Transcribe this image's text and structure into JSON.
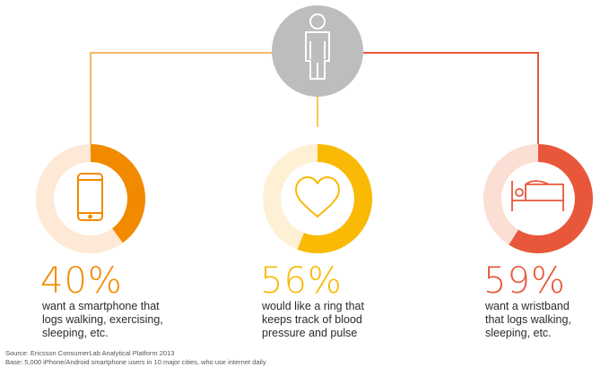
{
  "chart_data": {
    "type": "pie",
    "items": [
      {
        "value": 40,
        "label": "40%",
        "description": [
          "want a smartphone that",
          "logs walking, exercising,",
          "sleeping, etc."
        ],
        "icon": "smartphone-icon",
        "color": "#f28a00",
        "track_color": "#fde9d6"
      },
      {
        "value": 56,
        "label": "56%",
        "description": [
          "would like a ring that",
          "keeps track of blood",
          "pressure and pulse"
        ],
        "icon": "heart-icon",
        "color": "#f9b904",
        "track_color": "#fdf0d4"
      },
      {
        "value": 59,
        "label": "59%",
        "description": [
          "want a wristband",
          "that logs walking,",
          "sleeping, etc."
        ],
        "icon": "bed-icon",
        "color": "#e8573a",
        "track_color": "#fbded4"
      }
    ],
    "center_icon": "person-icon"
  },
  "source": {
    "line1": "Source: Ericsson ConsumerLab Analytical Platform 2013",
    "line2": "Base: 5,000 iPhone/Android smartphone users in 10 major cities, who use internet daily"
  }
}
